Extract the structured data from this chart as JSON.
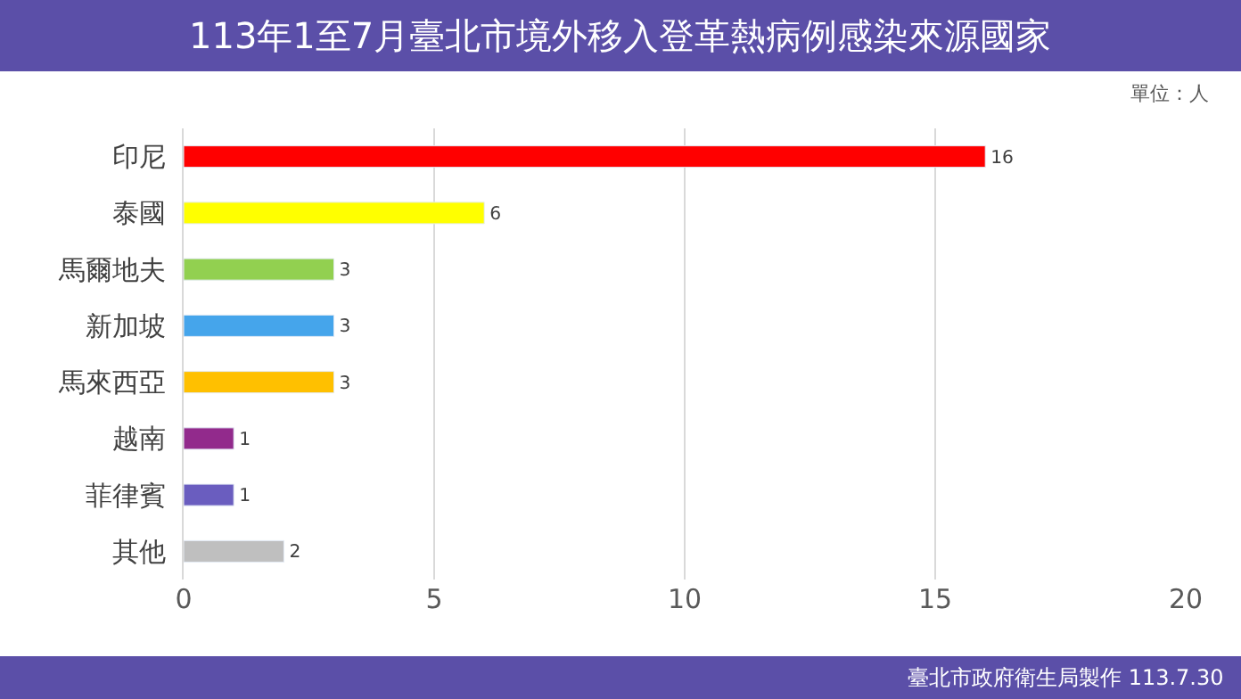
{
  "chart_data": {
    "type": "bar",
    "orientation": "horizontal",
    "title": "113年1至7月臺北市境外移入登革熱病例感染來源國家",
    "subtitle": "單位：人",
    "categories": [
      "印尼",
      "泰國",
      "馬爾地夫",
      "新加坡",
      "馬來西亞",
      "越南",
      "菲律賓",
      "其他"
    ],
    "values": [
      16,
      6,
      3,
      3,
      3,
      1,
      1,
      2
    ],
    "colors": [
      "#ff0000",
      "#ffff00",
      "#92d050",
      "#45a5eb",
      "#ffc000",
      "#922a8c",
      "#6a5dbf",
      "#bfbfbf"
    ],
    "xlim": [
      0,
      20
    ],
    "xticks": [
      0,
      5,
      10,
      15,
      20
    ],
    "grid": "x",
    "data_labels": true,
    "annotations": [
      "臺北市政府衛生局製作 113.7.30"
    ]
  }
}
